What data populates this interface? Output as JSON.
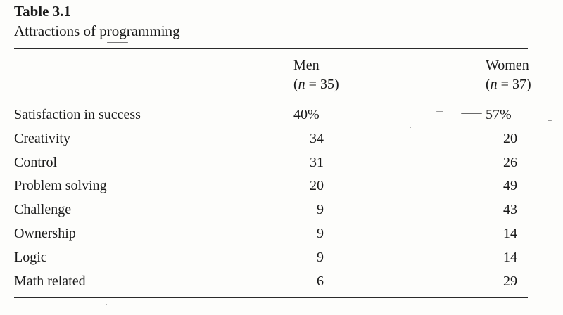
{
  "table": {
    "number": "Table 3.1",
    "caption": "Attractions of programming",
    "columns": [
      {
        "name": "Men",
        "n_label": "(n = 35)",
        "n_prefix": "(",
        "n_var": "n",
        "n_rest": " = 35)"
      },
      {
        "name": "Women",
        "n_label": "(n = 37)",
        "n_prefix": "(",
        "n_var": "n",
        "n_rest": " = 37)"
      }
    ],
    "rows": [
      {
        "label": "Satisfaction in success",
        "men": "40%",
        "women": "57%"
      },
      {
        "label": "Creativity",
        "men": "34",
        "women": "20"
      },
      {
        "label": "Control",
        "men": "31",
        "women": "26"
      },
      {
        "label": "Problem solving",
        "men": "20",
        "women": "49"
      },
      {
        "label": "Challenge",
        "men": "9",
        "women": "43"
      },
      {
        "label": "Ownership",
        "men": "9",
        "women": "14"
      },
      {
        "label": "Logic",
        "men": "9",
        "women": "14"
      },
      {
        "label": "Math related",
        "men": "6",
        "women": "29"
      }
    ]
  }
}
